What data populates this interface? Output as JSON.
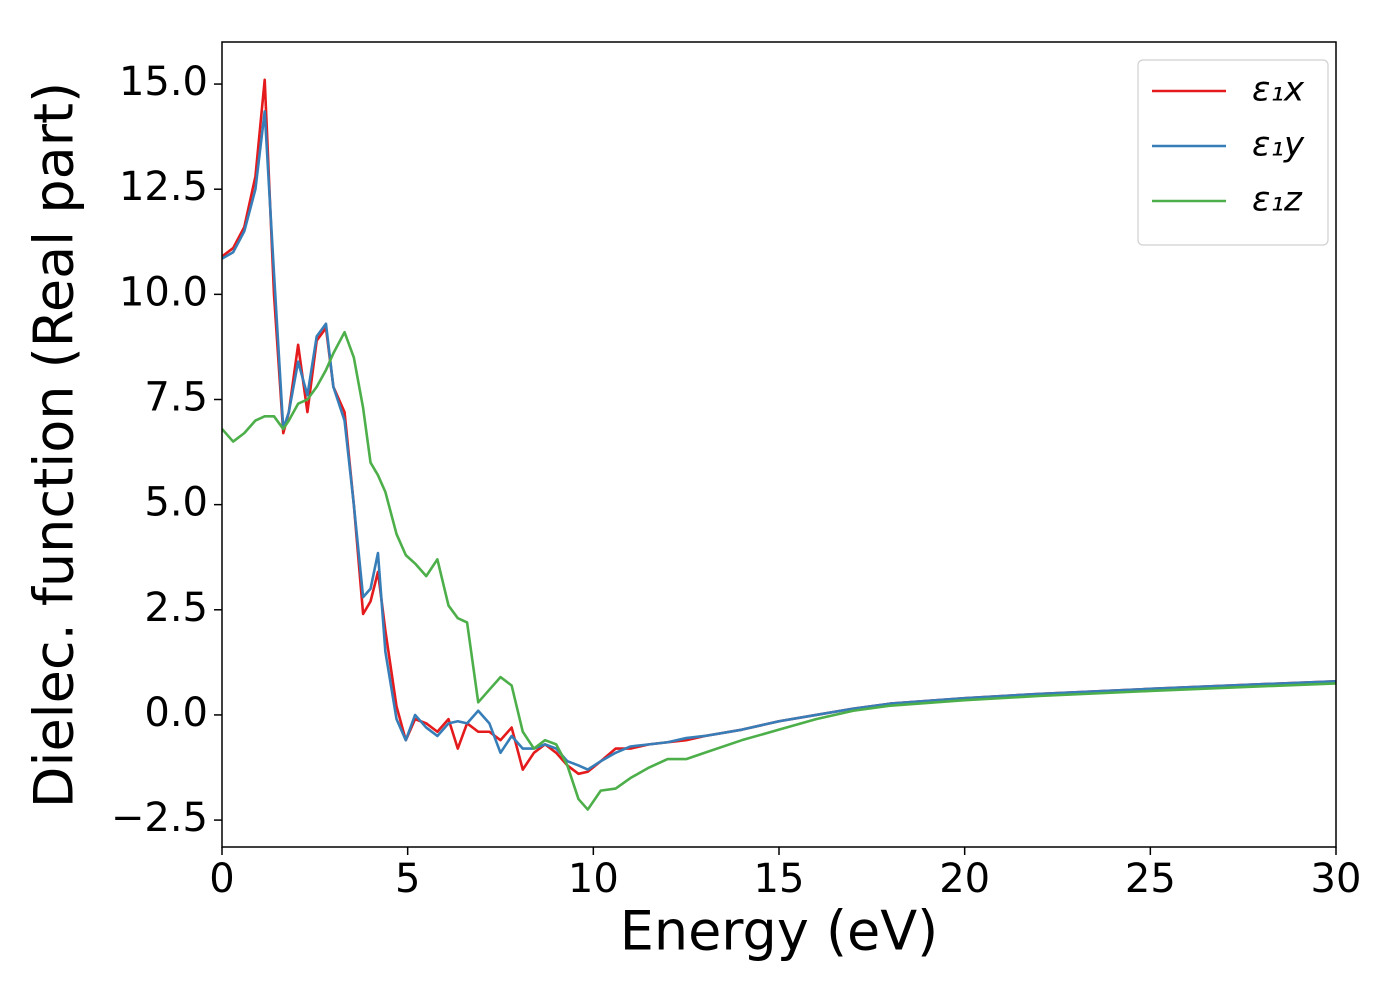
{
  "chart_data": {
    "type": "line",
    "xlabel": "Energy (eV)",
    "ylabel": "Dielec. function (Real part)",
    "x": [
      0,
      0.3,
      0.6,
      0.9,
      1.15,
      1.4,
      1.65,
      1.8,
      2.05,
      2.3,
      2.55,
      2.8,
      3.0,
      3.3,
      3.55,
      3.8,
      4.0,
      4.2,
      4.4,
      4.7,
      4.95,
      5.2,
      5.5,
      5.8,
      6.1,
      6.35,
      6.6,
      6.9,
      7.2,
      7.5,
      7.8,
      8.1,
      8.4,
      8.7,
      9.0,
      9.3,
      9.6,
      9.85,
      10.2,
      10.6,
      11,
      11.5,
      12,
      12.5,
      13,
      14,
      15,
      16,
      17,
      18,
      20,
      22,
      25,
      28,
      30
    ],
    "series": [
      {
        "name": "ε₁x",
        "color": "#e41a1c",
        "values": [
          10.9,
          11.1,
          11.6,
          12.8,
          15.1,
          10.0,
          6.7,
          7.2,
          8.8,
          7.2,
          8.9,
          9.2,
          7.8,
          7.2,
          5.0,
          2.4,
          2.7,
          3.4,
          2.0,
          0.2,
          -0.6,
          -0.1,
          -0.2,
          -0.4,
          -0.1,
          -0.8,
          -0.2,
          -0.4,
          -0.4,
          -0.6,
          -0.3,
          -1.3,
          -0.9,
          -0.7,
          -0.9,
          -1.2,
          -1.4,
          -1.35,
          -1.1,
          -0.8,
          -0.8,
          -0.7,
          -0.65,
          -0.6,
          -0.5,
          -0.35,
          -0.15,
          0,
          0.15,
          0.27,
          0.4,
          0.5,
          0.62,
          0.73,
          0.8
        ]
      },
      {
        "name": "ε₁y",
        "color": "#377eb8",
        "values": [
          10.85,
          11.0,
          11.5,
          12.5,
          14.35,
          10.5,
          6.8,
          7.2,
          8.4,
          7.6,
          9.0,
          9.3,
          7.8,
          7.0,
          5.0,
          2.8,
          3.0,
          3.85,
          1.5,
          -0.1,
          -0.6,
          0,
          -0.3,
          -0.5,
          -0.2,
          -0.15,
          -0.2,
          0.1,
          -0.2,
          -0.9,
          -0.5,
          -0.8,
          -0.8,
          -0.7,
          -0.8,
          -1.1,
          -1.2,
          -1.3,
          -1.1,
          -0.9,
          -0.75,
          -0.7,
          -0.65,
          -0.55,
          -0.5,
          -0.35,
          -0.15,
          0,
          0.15,
          0.27,
          0.4,
          0.5,
          0.62,
          0.73,
          0.8
        ]
      },
      {
        "name": "ε₁z",
        "color": "#4daf4a",
        "values": [
          6.8,
          6.5,
          6.7,
          7.0,
          7.1,
          7.1,
          6.8,
          7.0,
          7.4,
          7.5,
          7.8,
          8.2,
          8.6,
          9.1,
          8.5,
          7.3,
          6.0,
          5.7,
          5.3,
          4.3,
          3.8,
          3.6,
          3.3,
          3.7,
          2.6,
          2.3,
          2.2,
          0.3,
          0.6,
          0.9,
          0.7,
          -0.4,
          -0.8,
          -0.6,
          -0.7,
          -1.2,
          -2.0,
          -2.25,
          -1.8,
          -1.75,
          -1.5,
          -1.25,
          -1.05,
          -1.05,
          -0.9,
          -0.6,
          -0.35,
          -0.1,
          0.1,
          0.22,
          0.35,
          0.45,
          0.57,
          0.68,
          0.75
        ]
      }
    ],
    "xlim": [
      0,
      30
    ],
    "xticks": [
      0,
      5,
      10,
      15,
      20,
      25,
      30
    ],
    "ylim": [
      -3.14,
      16
    ],
    "yticks": [
      {
        "value": -2.5,
        "label": "−2.5"
      },
      {
        "value": 0,
        "label": "0.0"
      },
      {
        "value": 2.5,
        "label": "2.5"
      },
      {
        "value": 5,
        "label": "5.0"
      },
      {
        "value": 7.5,
        "label": "7.5"
      },
      {
        "value": 10,
        "label": "10.0"
      },
      {
        "value": 12.5,
        "label": "12.5"
      },
      {
        "value": 15,
        "label": "15.0"
      }
    ],
    "legend": "upper right",
    "grid": false
  }
}
